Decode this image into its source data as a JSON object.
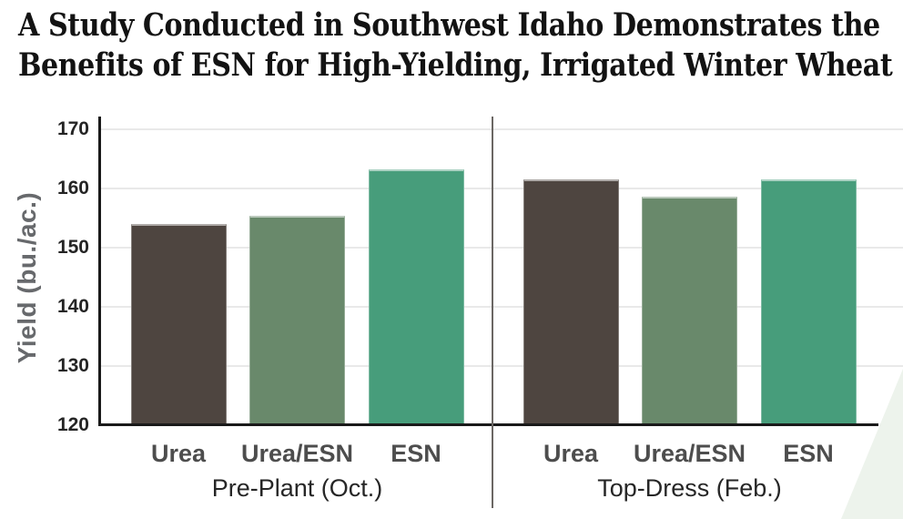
{
  "title": {
    "line1": "A Study Conducted in Southwest Idaho Demonstrates the",
    "line2": "Benefits of ESN for High-Yielding, Irrigated Winter Wheat"
  },
  "chart_data": {
    "type": "bar",
    "title": "A Study Conducted in Southwest Idaho Demonstrates the Benefits of ESN for High-Yielding, Irrigated Winter Wheat",
    "ylabel": "Yield (bu./ac.)",
    "xlabel": "",
    "ylim": [
      120,
      170
    ],
    "yticks": [
      120,
      130,
      140,
      150,
      160,
      170
    ],
    "grid": "horizontal",
    "legend_position": "none",
    "categories": [
      "Urea",
      "Urea/ESN",
      "ESN"
    ],
    "groups": [
      {
        "label": "Pre-Plant (Oct.)",
        "values": [
          154.0,
          155.3,
          163.2
        ]
      },
      {
        "label": "Top-Dress (Feb.)",
        "values": [
          161.4,
          158.6,
          161.4
        ]
      }
    ],
    "colors": {
      "Urea": "#4E4540",
      "Urea/ESN": "#69896B",
      "ESN": "#479D7B"
    },
    "style_colors": {
      "gridline": "#E9E9E9",
      "axis": "#1A1A1A",
      "divider": "#6B6764",
      "corner_wedge": "#EDF3EC",
      "title_text": "#131313",
      "tick_text": "#242424",
      "bar_label_text": "#4D4D4D",
      "group_label_text": "#262626",
      "y_axis_title_text": "#67696C"
    }
  }
}
